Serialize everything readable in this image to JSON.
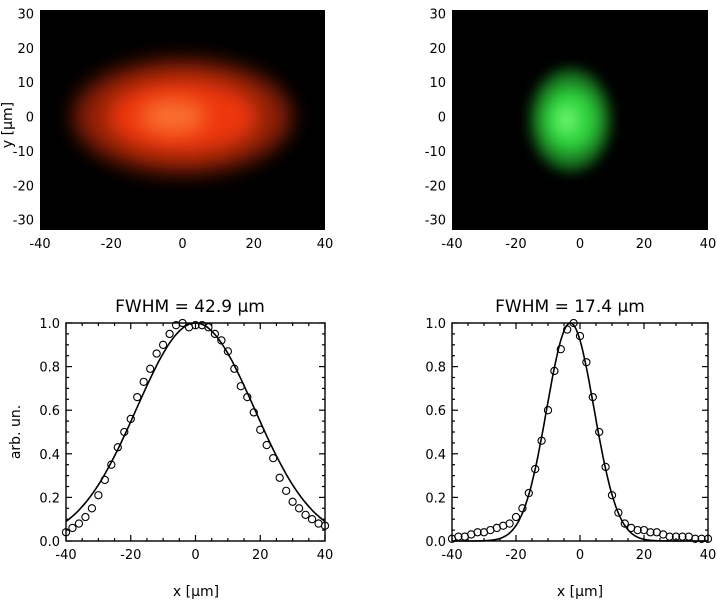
{
  "figure": {
    "panels": {
      "top_left": {
        "y_label": "y [μm]"
      },
      "top_right": {}
    }
  },
  "chart_data": [
    {
      "type": "heatmap",
      "panel": "top_left",
      "colormap": "red",
      "color": "#ff3a10",
      "xlim": [
        -40,
        40
      ],
      "ylim": [
        -33,
        31
      ],
      "x_ticks": [
        -40,
        -20,
        0,
        20,
        40
      ],
      "y_ticks": [
        -30,
        -20,
        -10,
        0,
        10,
        20,
        30
      ],
      "xlabel": "",
      "ylabel": "y [μm]",
      "spot": {
        "center_x": 0,
        "center_y": 0,
        "fwhm_x": 42.9,
        "fwhm_y": 16
      }
    },
    {
      "type": "heatmap",
      "panel": "top_right",
      "colormap": "green",
      "color": "#33e040",
      "xlim": [
        -40,
        40
      ],
      "ylim": [
        -33,
        31
      ],
      "x_ticks": [
        -40,
        -20,
        0,
        20,
        40
      ],
      "y_ticks": [
        -30,
        -20,
        -10,
        0,
        10,
        20,
        30
      ],
      "xlabel": "",
      "ylabel": "",
      "spot": {
        "center_x": -3,
        "center_y": -1,
        "fwhm_x": 17.4,
        "fwhm_y": 15
      }
    },
    {
      "type": "line",
      "panel": "bottom_left",
      "title": "FWHM = 42.9 μm",
      "xlabel": "x [μm]",
      "ylabel": "arb. un.",
      "xlim": [
        -40,
        40
      ],
      "ylim": [
        0,
        1
      ],
      "x_ticks": [
        -40,
        -20,
        0,
        20,
        40
      ],
      "y_ticks": [
        0.0,
        0.2,
        0.4,
        0.6,
        0.8,
        1.0
      ],
      "grid": false,
      "series": [
        {
          "kind": "fit",
          "center": 0,
          "fwhm": 42.9
        },
        {
          "kind": "data",
          "marker": "circle",
          "x": [
            -40,
            -38,
            -36,
            -34,
            -32,
            -30,
            -28,
            -26,
            -24,
            -22,
            -20,
            -18,
            -16,
            -14,
            -12,
            -10,
            -8,
            -6,
            -4,
            -2,
            0,
            2,
            4,
            6,
            8,
            10,
            12,
            14,
            16,
            18,
            20,
            22,
            24,
            26,
            28,
            30,
            32,
            34,
            36,
            38,
            40
          ],
          "y": [
            0.04,
            0.06,
            0.08,
            0.11,
            0.15,
            0.21,
            0.28,
            0.35,
            0.43,
            0.5,
            0.56,
            0.66,
            0.73,
            0.79,
            0.86,
            0.9,
            0.95,
            0.99,
            1.0,
            0.98,
            0.99,
            0.99,
            0.98,
            0.95,
            0.92,
            0.87,
            0.79,
            0.71,
            0.66,
            0.59,
            0.51,
            0.44,
            0.38,
            0.29,
            0.23,
            0.18,
            0.15,
            0.12,
            0.1,
            0.08,
            0.07
          ]
        }
      ]
    },
    {
      "type": "line",
      "panel": "bottom_right",
      "title": "FWHM = 17.4 μm",
      "xlabel": "x [μm]",
      "ylabel": "",
      "xlim": [
        -40,
        40
      ],
      "ylim": [
        0,
        1
      ],
      "x_ticks": [
        -40,
        -20,
        0,
        20,
        40
      ],
      "y_ticks": [
        0.0,
        0.2,
        0.4,
        0.6,
        0.8,
        1.0
      ],
      "grid": false,
      "series": [
        {
          "kind": "fit",
          "center": -3,
          "fwhm": 17.4
        },
        {
          "kind": "data",
          "marker": "circle",
          "x": [
            -40,
            -38,
            -36,
            -34,
            -32,
            -30,
            -28,
            -26,
            -24,
            -22,
            -20,
            -18,
            -16,
            -14,
            -12,
            -10,
            -8,
            -6,
            -4,
            -2,
            0,
            2,
            4,
            6,
            8,
            10,
            12,
            14,
            16,
            18,
            20,
            22,
            24,
            26,
            28,
            30,
            32,
            34,
            36,
            38,
            40
          ],
          "y": [
            0.01,
            0.02,
            0.02,
            0.03,
            0.04,
            0.04,
            0.05,
            0.06,
            0.07,
            0.08,
            0.11,
            0.15,
            0.22,
            0.33,
            0.46,
            0.6,
            0.78,
            0.88,
            0.97,
            1.0,
            0.94,
            0.82,
            0.66,
            0.5,
            0.34,
            0.21,
            0.13,
            0.08,
            0.06,
            0.05,
            0.05,
            0.04,
            0.04,
            0.03,
            0.02,
            0.02,
            0.02,
            0.02,
            0.01,
            0.01,
            0.01
          ]
        }
      ]
    }
  ]
}
